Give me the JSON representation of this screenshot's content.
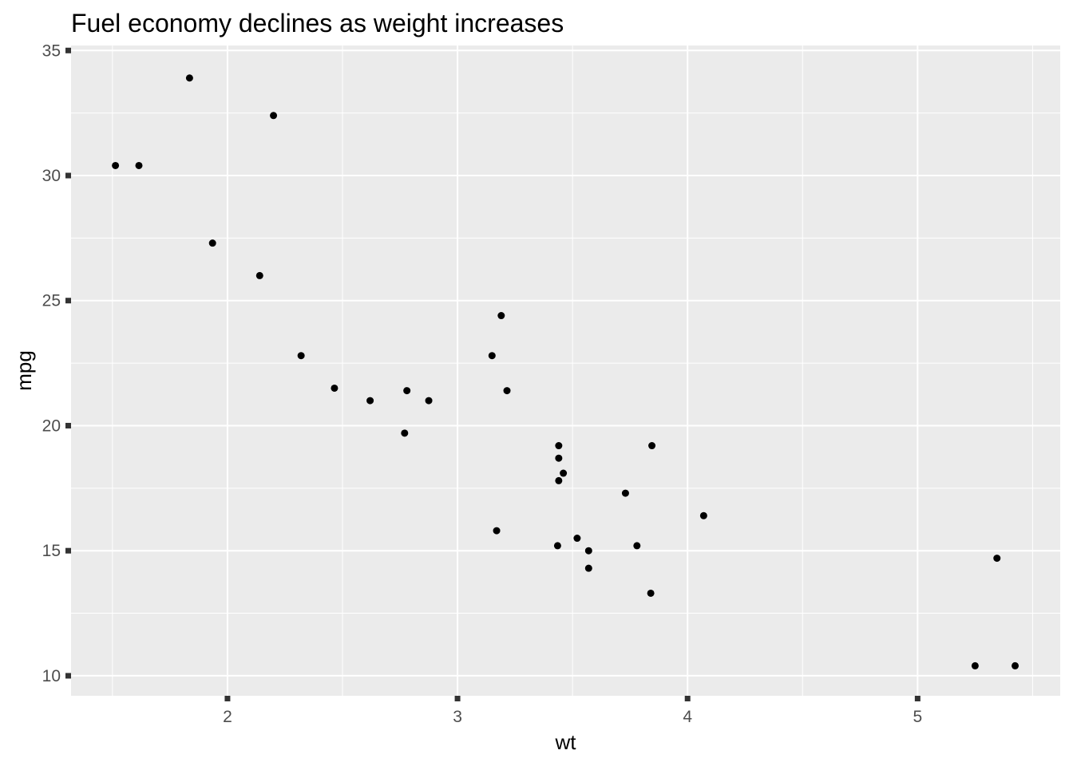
{
  "chart_data": {
    "type": "scatter",
    "title": "Fuel economy declines as weight increases",
    "xlabel": "wt",
    "ylabel": "mpg",
    "xlim": [
      1.32,
      5.62
    ],
    "ylim": [
      9.2,
      35.2
    ],
    "x_ticks": [
      2,
      3,
      4,
      5
    ],
    "y_ticks": [
      10,
      15,
      20,
      25,
      30,
      35
    ],
    "x_minor_ticks": [
      1.5,
      2.5,
      3.5,
      4.5,
      5.5
    ],
    "y_minor_ticks": [
      12.5,
      17.5,
      22.5,
      27.5,
      32.5
    ],
    "grid": true,
    "legend": "none",
    "panel_color": "#ebebeb",
    "grid_color": "#ffffff",
    "point_color": "#000000",
    "tick_color": "#333333",
    "points": [
      {
        "x": 2.62,
        "y": 21.0
      },
      {
        "x": 2.875,
        "y": 21.0
      },
      {
        "x": 2.32,
        "y": 22.8
      },
      {
        "x": 3.215,
        "y": 21.4
      },
      {
        "x": 3.44,
        "y": 18.7
      },
      {
        "x": 3.46,
        "y": 18.1
      },
      {
        "x": 3.57,
        "y": 14.3
      },
      {
        "x": 3.19,
        "y": 24.4
      },
      {
        "x": 3.15,
        "y": 22.8
      },
      {
        "x": 3.44,
        "y": 19.2
      },
      {
        "x": 3.44,
        "y": 17.8
      },
      {
        "x": 4.07,
        "y": 16.4
      },
      {
        "x": 3.73,
        "y": 17.3
      },
      {
        "x": 3.78,
        "y": 15.2
      },
      {
        "x": 5.25,
        "y": 10.4
      },
      {
        "x": 5.424,
        "y": 10.4
      },
      {
        "x": 5.345,
        "y": 14.7
      },
      {
        "x": 2.2,
        "y": 32.4
      },
      {
        "x": 1.615,
        "y": 30.4
      },
      {
        "x": 1.835,
        "y": 33.9
      },
      {
        "x": 2.465,
        "y": 21.5
      },
      {
        "x": 3.52,
        "y": 15.5
      },
      {
        "x": 3.435,
        "y": 15.2
      },
      {
        "x": 3.84,
        "y": 13.3
      },
      {
        "x": 3.845,
        "y": 19.2
      },
      {
        "x": 1.935,
        "y": 27.3
      },
      {
        "x": 2.14,
        "y": 26.0
      },
      {
        "x": 1.513,
        "y": 30.4
      },
      {
        "x": 3.17,
        "y": 15.8
      },
      {
        "x": 2.77,
        "y": 19.7
      },
      {
        "x": 3.57,
        "y": 15.0
      },
      {
        "x": 2.78,
        "y": 21.4
      }
    ]
  }
}
